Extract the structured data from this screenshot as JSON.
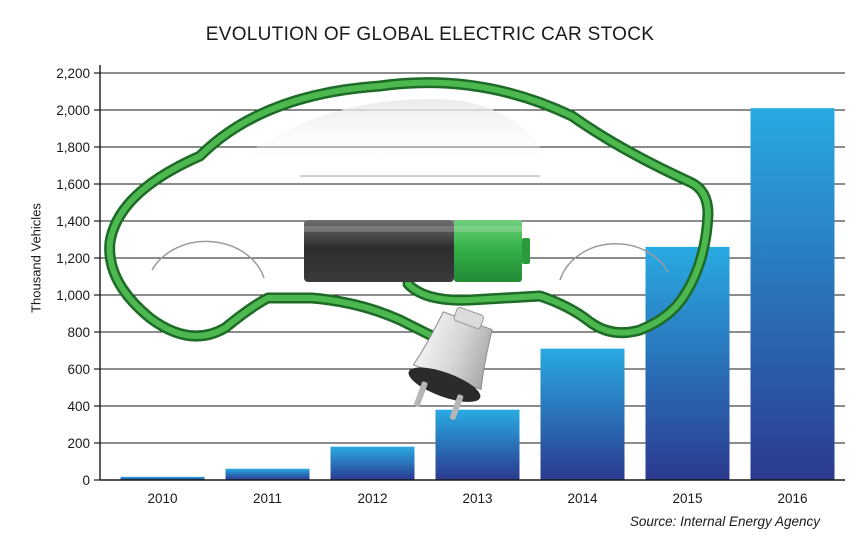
{
  "chart_data": {
    "type": "bar",
    "title": "EVOLUTION OF GLOBAL ELECTRIC CAR STOCK",
    "xlabel": "",
    "ylabel": "Thousand Vehicles",
    "categories": [
      "2010",
      "2011",
      "2012",
      "2013",
      "2014",
      "2015",
      "2016"
    ],
    "values": [
      17,
      61,
      180,
      380,
      710,
      1260,
      2010
    ],
    "ylim": [
      0,
      2200
    ],
    "yticks": [
      "0",
      "200",
      "400",
      "600",
      "800",
      "1,000",
      "1,200",
      "1,400",
      "1,600",
      "1,800",
      "2,000",
      "2,200"
    ],
    "grid": true,
    "colors": {
      "bar_light": "#29aae2",
      "bar_dark": "#2b3a8f",
      "cable": "#3a9a3c",
      "battery_charge": "#35b24a"
    }
  },
  "source": "Source: Internal Energy Agency"
}
